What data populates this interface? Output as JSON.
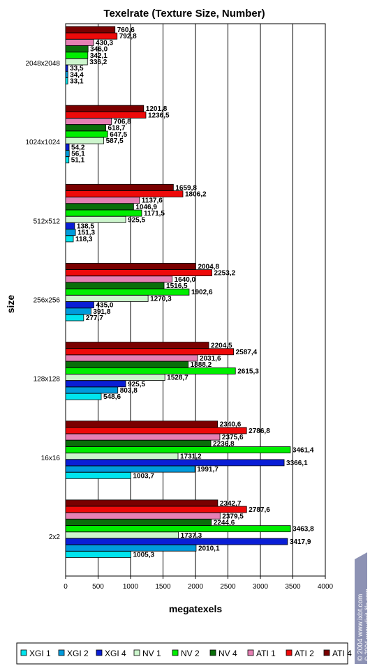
{
  "chart_data": {
    "type": "bar",
    "orientation": "horizontal",
    "title": "Texelrate (Texture Size, Number)",
    "xlabel": "megatexels",
    "ylabel": "size",
    "xlim": [
      0,
      4000
    ],
    "xticks": [
      0,
      500,
      1000,
      1500,
      2000,
      2500,
      3000,
      3500,
      4000
    ],
    "grid": true,
    "legend_position": "bottom",
    "categories": [
      "2048x2048",
      "1024x1024",
      "512x512",
      "256x256",
      "128x128",
      "16x16",
      "2x2"
    ],
    "series": [
      {
        "name": "XGI 1",
        "color": "#00e5ee",
        "values": [
          33.1,
          51.1,
          118.3,
          277.7,
          548.6,
          1003.7,
          1005.3
        ],
        "labels": [
          "33,1",
          "51,1",
          "118,3",
          "277,7",
          "548,6",
          "1003,7",
          "1005,3"
        ]
      },
      {
        "name": "XGI 2",
        "color": "#009bdc",
        "values": [
          34.4,
          56.1,
          151.3,
          391.8,
          803.8,
          1991.7,
          2010.1
        ],
        "labels": [
          "34,4",
          "56,1",
          "151,3",
          "391,8",
          "803,8",
          "1991,7",
          "2010,1"
        ]
      },
      {
        "name": "XGI 4",
        "color": "#0a1ed6",
        "values": [
          33.5,
          54.2,
          138.5,
          435.0,
          925.5,
          3366.1,
          3417.9
        ],
        "labels": [
          "33,5",
          "54,2",
          "138,5",
          "435,0",
          "925,5",
          "3366,1",
          "3417,9"
        ]
      },
      {
        "name": "NV 1",
        "color": "#ccf5cc",
        "values": [
          336.2,
          587.5,
          925.5,
          1270.3,
          1528.7,
          1731.2,
          1737.3
        ],
        "labels": [
          "336,2",
          "587,5",
          "925,5",
          "1270,3",
          "1528,7",
          "1731,2",
          "1737,3"
        ]
      },
      {
        "name": "NV 2",
        "color": "#00ee00",
        "values": [
          342.1,
          647.5,
          1171.5,
          1902.6,
          2615.3,
          3461.4,
          3463.8
        ],
        "labels": [
          "342,1",
          "647,5",
          "1171,5",
          "1902,6",
          "2615,3",
          "3461,4",
          "3463,8"
        ]
      },
      {
        "name": "NV 4",
        "color": "#0a6e0a",
        "values": [
          346.0,
          618.7,
          1046.9,
          1516.5,
          1888.2,
          2236.8,
          2244.6
        ],
        "labels": [
          "346,0",
          "618,7",
          "1046,9",
          "1516,5",
          "1888,2",
          "2236,8",
          "2244,6"
        ]
      },
      {
        "name": "ATI 1",
        "color": "#e680b4",
        "values": [
          430.3,
          706.8,
          1137.6,
          1640.0,
          2031.6,
          2375.6,
          2379.5
        ],
        "labels": [
          "430,3",
          "706,8",
          "1137,6",
          "1640,0",
          "2031,6",
          "2375,6",
          "2379,5"
        ]
      },
      {
        "name": "ATI 2",
        "color": "#ee0a0a",
        "values": [
          792.8,
          1236.5,
          1806.2,
          2253.2,
          2587.4,
          2786.8,
          2787.6
        ],
        "labels": [
          "792,8",
          "1236,5",
          "1806,2",
          "2253,2",
          "2587,4",
          "2786,8",
          "2787,6"
        ]
      },
      {
        "name": "ATI 4",
        "color": "#7a0000",
        "values": [
          760.6,
          1201.8,
          1659.8,
          2004.8,
          2204.5,
          2340.6,
          2342.7
        ],
        "labels": [
          "760,6",
          "1201,8",
          "1659,8",
          "2004,8",
          "2204,5",
          "2340,6",
          "2342,7"
        ]
      }
    ]
  },
  "watermark": {
    "text1": "© 2004 www.ixbt.com",
    "text2": "© 2004 www.digit-life.com"
  }
}
